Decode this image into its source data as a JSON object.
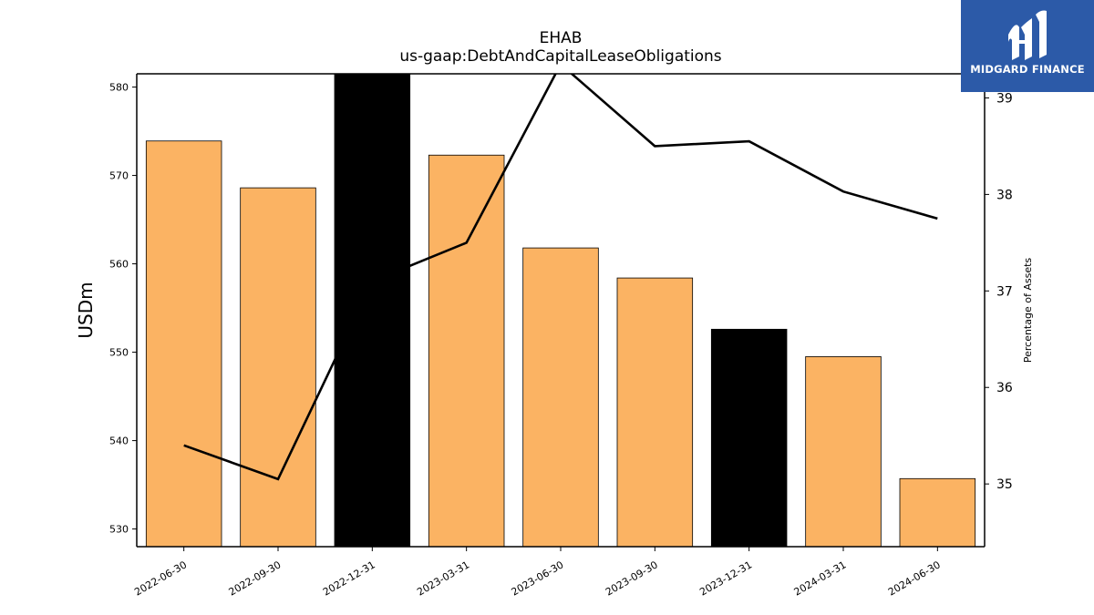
{
  "chart_data": {
    "type": "bar",
    "title": "EHAB",
    "subtitle": "us-gaap:DebtAndCapitalLeaseObligations",
    "ylabel": "USDm",
    "ylabel_right": "Percentage of Assets",
    "categories": [
      "2022-06-30",
      "2022-09-30",
      "2022-12-31",
      "2023-03-31",
      "2023-06-30",
      "2023-09-30",
      "2023-12-31",
      "2024-03-31",
      "2024-06-30"
    ],
    "series": [
      {
        "type": "bar",
        "axis": "left",
        "values": [
          573.9,
          568.6,
          581.6,
          572.3,
          561.8,
          558.4,
          552.6,
          549.5,
          535.7
        ],
        "colors": [
          "#fbb363",
          "#fbb363",
          "#000000",
          "#fbb363",
          "#fbb363",
          "#fbb363",
          "#000000",
          "#fbb363",
          "#fbb363"
        ]
      },
      {
        "type": "line",
        "axis": "right",
        "color": "#000000",
        "values": [
          35.4,
          35.05,
          37.1,
          37.5,
          39.35,
          38.5,
          38.55,
          38.03,
          37.75
        ]
      }
    ],
    "ylim": [
      528,
      581.5
    ],
    "yticks": [
      530,
      540,
      550,
      560,
      570,
      580
    ],
    "ylim_right": [
      34.35,
      39.25
    ],
    "yticks_right": [
      35,
      36,
      37,
      38,
      39
    ],
    "grid": false,
    "legend": "none"
  },
  "logo": {
    "name": "MIDGARD FINANCE",
    "background": "#2c5aa8"
  }
}
